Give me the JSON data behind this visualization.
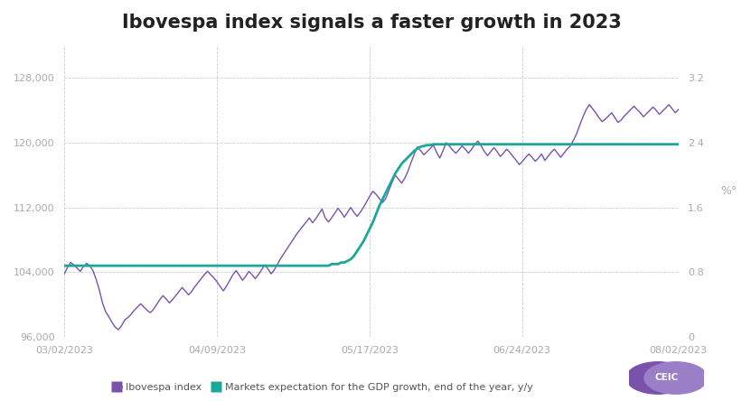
{
  "title": "Ibovespa index signals a faster growth in 2023",
  "title_fontsize": 15,
  "background_color": "#ffffff",
  "grid_color": "#cccccc",
  "left_ylim": [
    96000,
    132000
  ],
  "left_yticks": [
    96000,
    104000,
    112000,
    120000,
    128000
  ],
  "right_ylim": [
    0,
    3.6
  ],
  "right_yticks": [
    0,
    0.8,
    1.6,
    2.4,
    3.2
  ],
  "ibovespa_color": "#7B52AB",
  "gdp_color": "#1BA89A",
  "legend_ibovespa": "Ibovespa index",
  "legend_gdp": "Markets expectation for the GDP growth, end of the year, y/y",
  "ylabel_right": "%°",
  "tick_color": "#aaaaaa",
  "ibovespa": [
    103800,
    104600,
    105200,
    104900,
    104500,
    104100,
    104700,
    105100,
    104800,
    104200,
    103100,
    101800,
    100200,
    99100,
    98500,
    97800,
    97200,
    96900,
    97400,
    98100,
    98400,
    98800,
    99300,
    99700,
    100100,
    99700,
    99300,
    99000,
    99400,
    100000,
    100600,
    101100,
    100700,
    100200,
    100600,
    101100,
    101600,
    102100,
    101700,
    101200,
    101600,
    102200,
    102700,
    103200,
    103700,
    104100,
    103700,
    103300,
    102800,
    102200,
    101700,
    102300,
    103000,
    103700,
    104200,
    103600,
    103000,
    103500,
    104100,
    103700,
    103200,
    103700,
    104300,
    104900,
    104400,
    103800,
    104300,
    105000,
    105700,
    106300,
    106900,
    107500,
    108100,
    108700,
    109200,
    109700,
    110200,
    110700,
    110100,
    110600,
    111200,
    111800,
    110700,
    110200,
    110700,
    111300,
    111900,
    111400,
    110800,
    111400,
    112000,
    111400,
    110900,
    111400,
    112000,
    112700,
    113400,
    114000,
    113600,
    113100,
    112600,
    113100,
    114100,
    115100,
    116000,
    115500,
    115000,
    115600,
    116500,
    117600,
    118600,
    119500,
    119000,
    118500,
    118900,
    119300,
    119700,
    118800,
    118100,
    119000,
    120000,
    119600,
    119100,
    118700,
    119100,
    119600,
    119200,
    118700,
    119200,
    119800,
    120200,
    119600,
    118900,
    118400,
    118900,
    119400,
    118900,
    118300,
    118700,
    119200,
    118800,
    118300,
    117800,
    117300,
    117700,
    118200,
    118600,
    118200,
    117700,
    118100,
    118600,
    117800,
    118300,
    118800,
    119200,
    118700,
    118200,
    118700,
    119200,
    119600,
    120300,
    121100,
    122200,
    123200,
    124100,
    124700,
    124200,
    123700,
    123100,
    122600,
    122900,
    123300,
    123700,
    123100,
    122500,
    122800,
    123300,
    123700,
    124100,
    124500,
    124100,
    123700,
    123200,
    123600,
    124000,
    124400,
    124000,
    123500,
    123900,
    124300,
    124700,
    124200,
    123700,
    124100
  ],
  "gdp": [
    0.88,
    0.88,
    0.88,
    0.88,
    0.88,
    0.88,
    0.88,
    0.88,
    0.88,
    0.88,
    0.88,
    0.88,
    0.88,
    0.88,
    0.88,
    0.88,
    0.88,
    0.88,
    0.88,
    0.88,
    0.88,
    0.88,
    0.88,
    0.88,
    0.88,
    0.88,
    0.88,
    0.88,
    0.88,
    0.88,
    0.88,
    0.88,
    0.88,
    0.88,
    0.88,
    0.88,
    0.88,
    0.88,
    0.88,
    0.88,
    0.88,
    0.88,
    0.88,
    0.88,
    0.88,
    0.88,
    0.88,
    0.88,
    0.88,
    0.88,
    0.88,
    0.88,
    0.88,
    0.88,
    0.88,
    0.88,
    0.88,
    0.88,
    0.88,
    0.88,
    0.88,
    0.88,
    0.88,
    0.88,
    0.88,
    0.88,
    0.88,
    0.88,
    0.88,
    0.88,
    0.88,
    0.88,
    0.88,
    0.88,
    0.88,
    0.88,
    0.88,
    0.88,
    0.88,
    0.88,
    0.88,
    0.88,
    0.88,
    0.88,
    0.9,
    0.9,
    0.9,
    0.92,
    0.92,
    0.94,
    0.96,
    1.0,
    1.06,
    1.12,
    1.18,
    1.26,
    1.34,
    1.42,
    1.52,
    1.62,
    1.7,
    1.78,
    1.86,
    1.94,
    2.02,
    2.08,
    2.14,
    2.18,
    2.22,
    2.26,
    2.3,
    2.33,
    2.35,
    2.36,
    2.37,
    2.37,
    2.38,
    2.38,
    2.38,
    2.38,
    2.38,
    2.38,
    2.38,
    2.38,
    2.38,
    2.38,
    2.38,
    2.38,
    2.38,
    2.38,
    2.38,
    2.38,
    2.38,
    2.38,
    2.38,
    2.38,
    2.38,
    2.38,
    2.38,
    2.38,
    2.38,
    2.38,
    2.38,
    2.38,
    2.38,
    2.38,
    2.38,
    2.38,
    2.38,
    2.38,
    2.38,
    2.38,
    2.38,
    2.38,
    2.38,
    2.38,
    2.38,
    2.38,
    2.38,
    2.38,
    2.38,
    2.38,
    2.38,
    2.38,
    2.38,
    2.38,
    2.38,
    2.38,
    2.38,
    2.38,
    2.38,
    2.38,
    2.38,
    2.38,
    2.38,
    2.38,
    2.38,
    2.38,
    2.38,
    2.38,
    2.38,
    2.38,
    2.38,
    2.38,
    2.38,
    2.38,
    2.38,
    2.38,
    2.38,
    2.38,
    2.38,
    2.38,
    2.38,
    2.38
  ],
  "start_date": "2023-03-02",
  "end_date": "2023-08-02",
  "xtick_dates": [
    "2023-03-02",
    "2023-04-09",
    "2023-05-17",
    "2023-06-24",
    "2023-08-02"
  ],
  "xtick_labels": [
    "03/02/2023",
    "04/09/2023",
    "05/17/2023",
    "06/24/2023",
    "08/02/2023"
  ]
}
